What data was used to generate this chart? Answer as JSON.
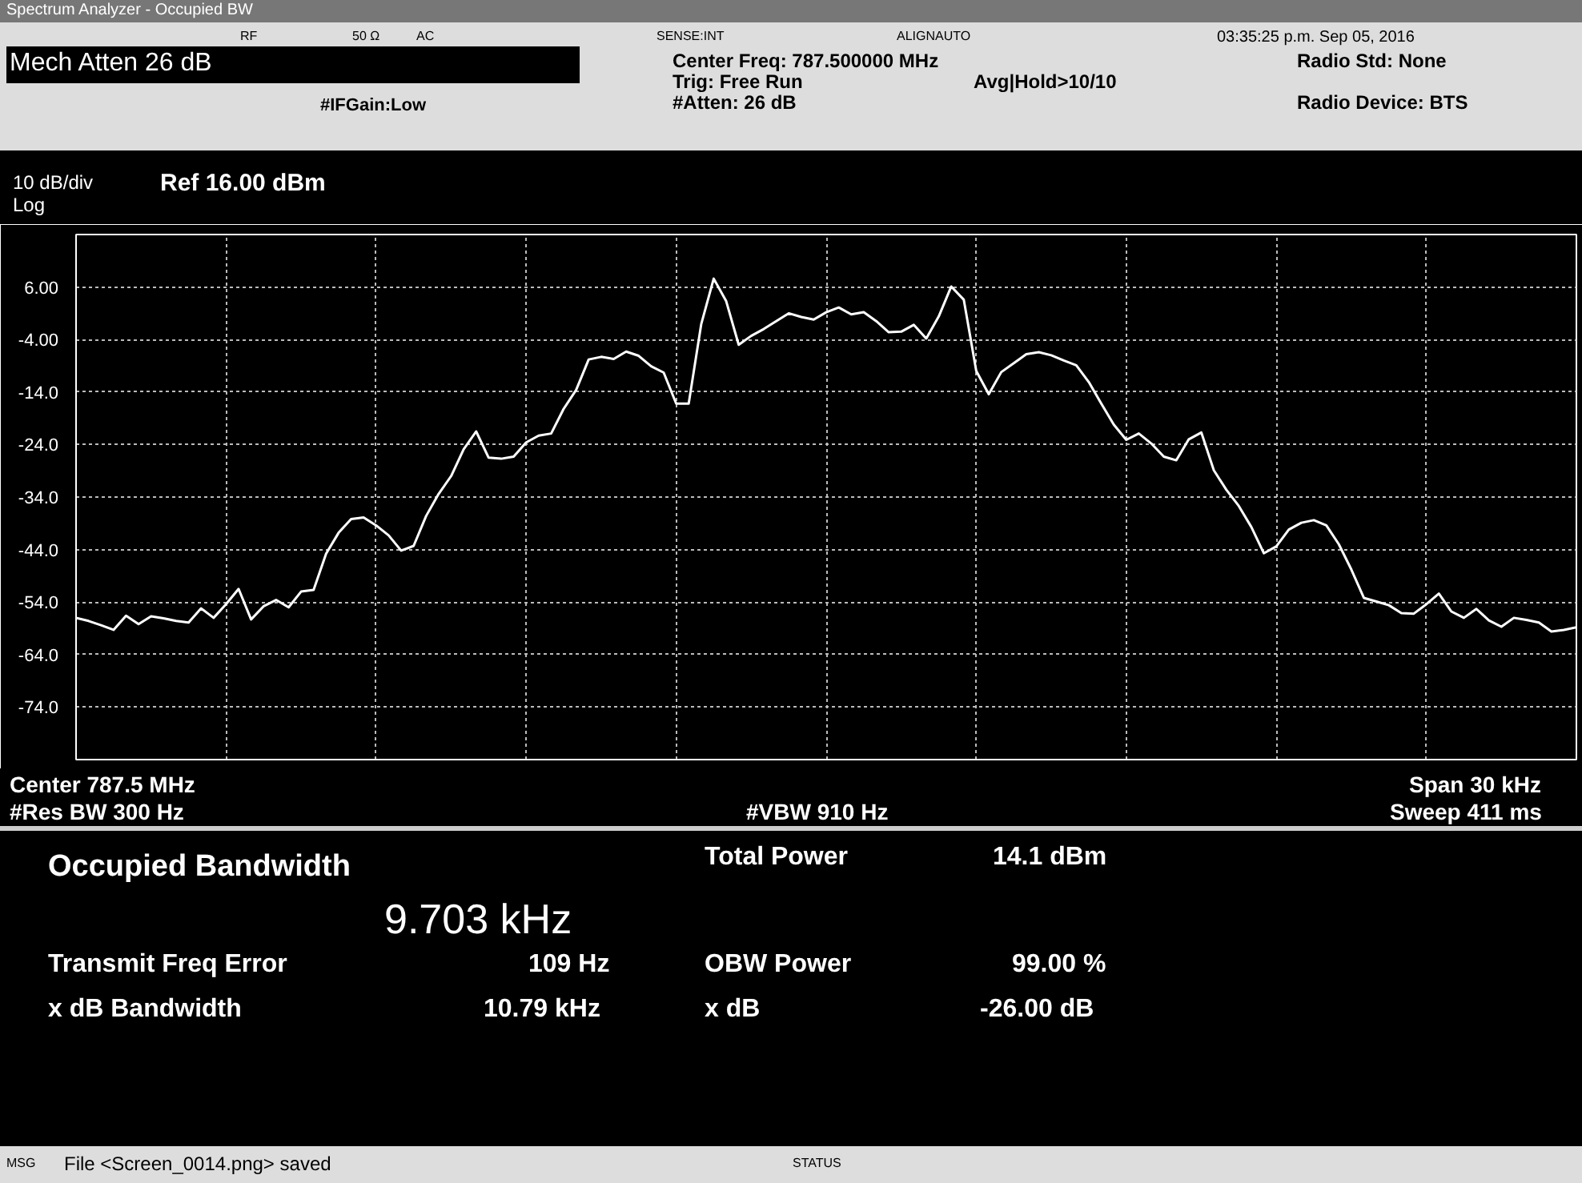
{
  "chart_data": {
    "type": "line",
    "title": "Spectrum Analyzer - Occupied BW",
    "categories": [
      null,
      null,
      null,
      null,
      null,
      null,
      null,
      null,
      null,
      null,
      null,
      null,
      null,
      null,
      null,
      null,
      null,
      null,
      null,
      null,
      null,
      null,
      null,
      null,
      null,
      null,
      null,
      null,
      null,
      null,
      null,
      null,
      null,
      null,
      null,
      null,
      null,
      null,
      null,
      null,
      null,
      null,
      null,
      null,
      null,
      null,
      null,
      null,
      null,
      null,
      null,
      null,
      null,
      null,
      null,
      null,
      null,
      null,
      null,
      null,
      null,
      null,
      null,
      null,
      null,
      null,
      null,
      null,
      null,
      null,
      null,
      null,
      null,
      null,
      null,
      null,
      null,
      null,
      null,
      null,
      null,
      null,
      null,
      null,
      null,
      null,
      null,
      null,
      null,
      null,
      null,
      null,
      null,
      null,
      null,
      null,
      null,
      null,
      null,
      null,
      null,
      null,
      null,
      null,
      null,
      null,
      null,
      null,
      null,
      null,
      null,
      null,
      null,
      null,
      null,
      null,
      null,
      null,
      null,
      null,
      null
    ],
    "series": [
      {
        "color": "#ffffff",
        "values": [
          -57.0,
          -57.6,
          -58.4,
          -59.3,
          -56.6,
          -58.2,
          -56.7,
          -57.1,
          -57.6,
          -57.9,
          -55.2,
          -57.0,
          -54.4,
          -51.5,
          -57.3,
          -54.8,
          -53.6,
          -55.0,
          -52.0,
          -51.7,
          -44.8,
          -40.8,
          -38.2,
          -37.9,
          -39.4,
          -41.3,
          -44.2,
          -43.3,
          -37.6,
          -33.4,
          -30.0,
          -24.9,
          -21.5,
          -26.5,
          -26.7,
          -26.3,
          -23.6,
          -22.3,
          -21.9,
          -17.2,
          -13.6,
          -7.8,
          -7.3,
          -7.7,
          -6.3,
          -7.1,
          -9.1,
          -10.3,
          -16.2,
          -16.2,
          -1.1,
          7.6,
          3.3,
          -5.0,
          -3.3,
          -2.0,
          -0.5,
          1.0,
          0.3,
          -0.2,
          1.2,
          2.1,
          0.8,
          1.2,
          -0.5,
          -2.6,
          -2.5,
          -1.2,
          -3.8,
          0.4,
          6.1,
          3.6,
          -10.0,
          -14.4,
          -10.2,
          -8.5,
          -6.8,
          -6.4,
          -7.0,
          -8.0,
          -8.9,
          -12.1,
          -16.2,
          -20.2,
          -23.1,
          -21.9,
          -23.8,
          -26.3,
          -27.0,
          -23.0,
          -21.7,
          -28.9,
          -32.6,
          -35.7,
          -39.7,
          -44.7,
          -43.4,
          -40.2,
          -38.9,
          -38.4,
          -39.4,
          -43.0,
          -47.8,
          -53.2,
          -53.9,
          -54.6,
          -56.1,
          -56.2,
          -54.4,
          -52.4,
          -55.8,
          -57.0,
          -55.3,
          -57.5,
          -58.7,
          -57.0,
          -57.4,
          -57.9,
          -59.6,
          -59.3,
          -58.8
        ]
      }
    ],
    "ylim": [
      -84,
      16
    ],
    "yticks": [
      {
        "value": 6,
        "label": "6.00"
      },
      {
        "value": -4,
        "label": "-4.00"
      },
      {
        "value": -14,
        "label": "-14.0"
      },
      {
        "value": -24,
        "label": "-24.0"
      },
      {
        "value": -34,
        "label": "-34.0"
      },
      {
        "value": -44,
        "label": "-44.0"
      },
      {
        "value": -54,
        "label": "-54.0"
      },
      {
        "value": -64,
        "label": "-64.0"
      },
      {
        "value": -74,
        "label": "-74.0"
      }
    ],
    "grid": true,
    "line_style": "solid",
    "annotations": [
      "RF",
      "50 Ω",
      "AC",
      "SENSE:INT",
      "ALIGNAUTO",
      "03:35:25 p.m. Sep 05, 2016",
      "Mech Atten 26 dB",
      "Center Freq: 787.500000 MHz",
      "Trig: Free Run",
      "Avg|Hold>10/10",
      "#IFGain:Low",
      "#Atten: 26 dB",
      "Radio Std: None",
      "Radio Device: BTS",
      "10 dB/div",
      "Ref 16.00 dBm",
      "Log",
      "Center 787.5 MHz",
      "Span 30 kHz",
      "#Res BW 300 Hz",
      "#VBW 910 Hz",
      "Sweep 411 ms",
      "Occupied Bandwidth",
      "9.703 kHz",
      "Total Power",
      "14.1 dBm",
      "Transmit Freq Error",
      "109 Hz",
      "OBW Power",
      "99.00 %",
      "x dB Bandwidth",
      "10.79 kHz",
      "x dB",
      "-26.00 dB",
      "MSG",
      "File <Screen_0014.png> saved",
      "STATUS"
    ]
  }
}
